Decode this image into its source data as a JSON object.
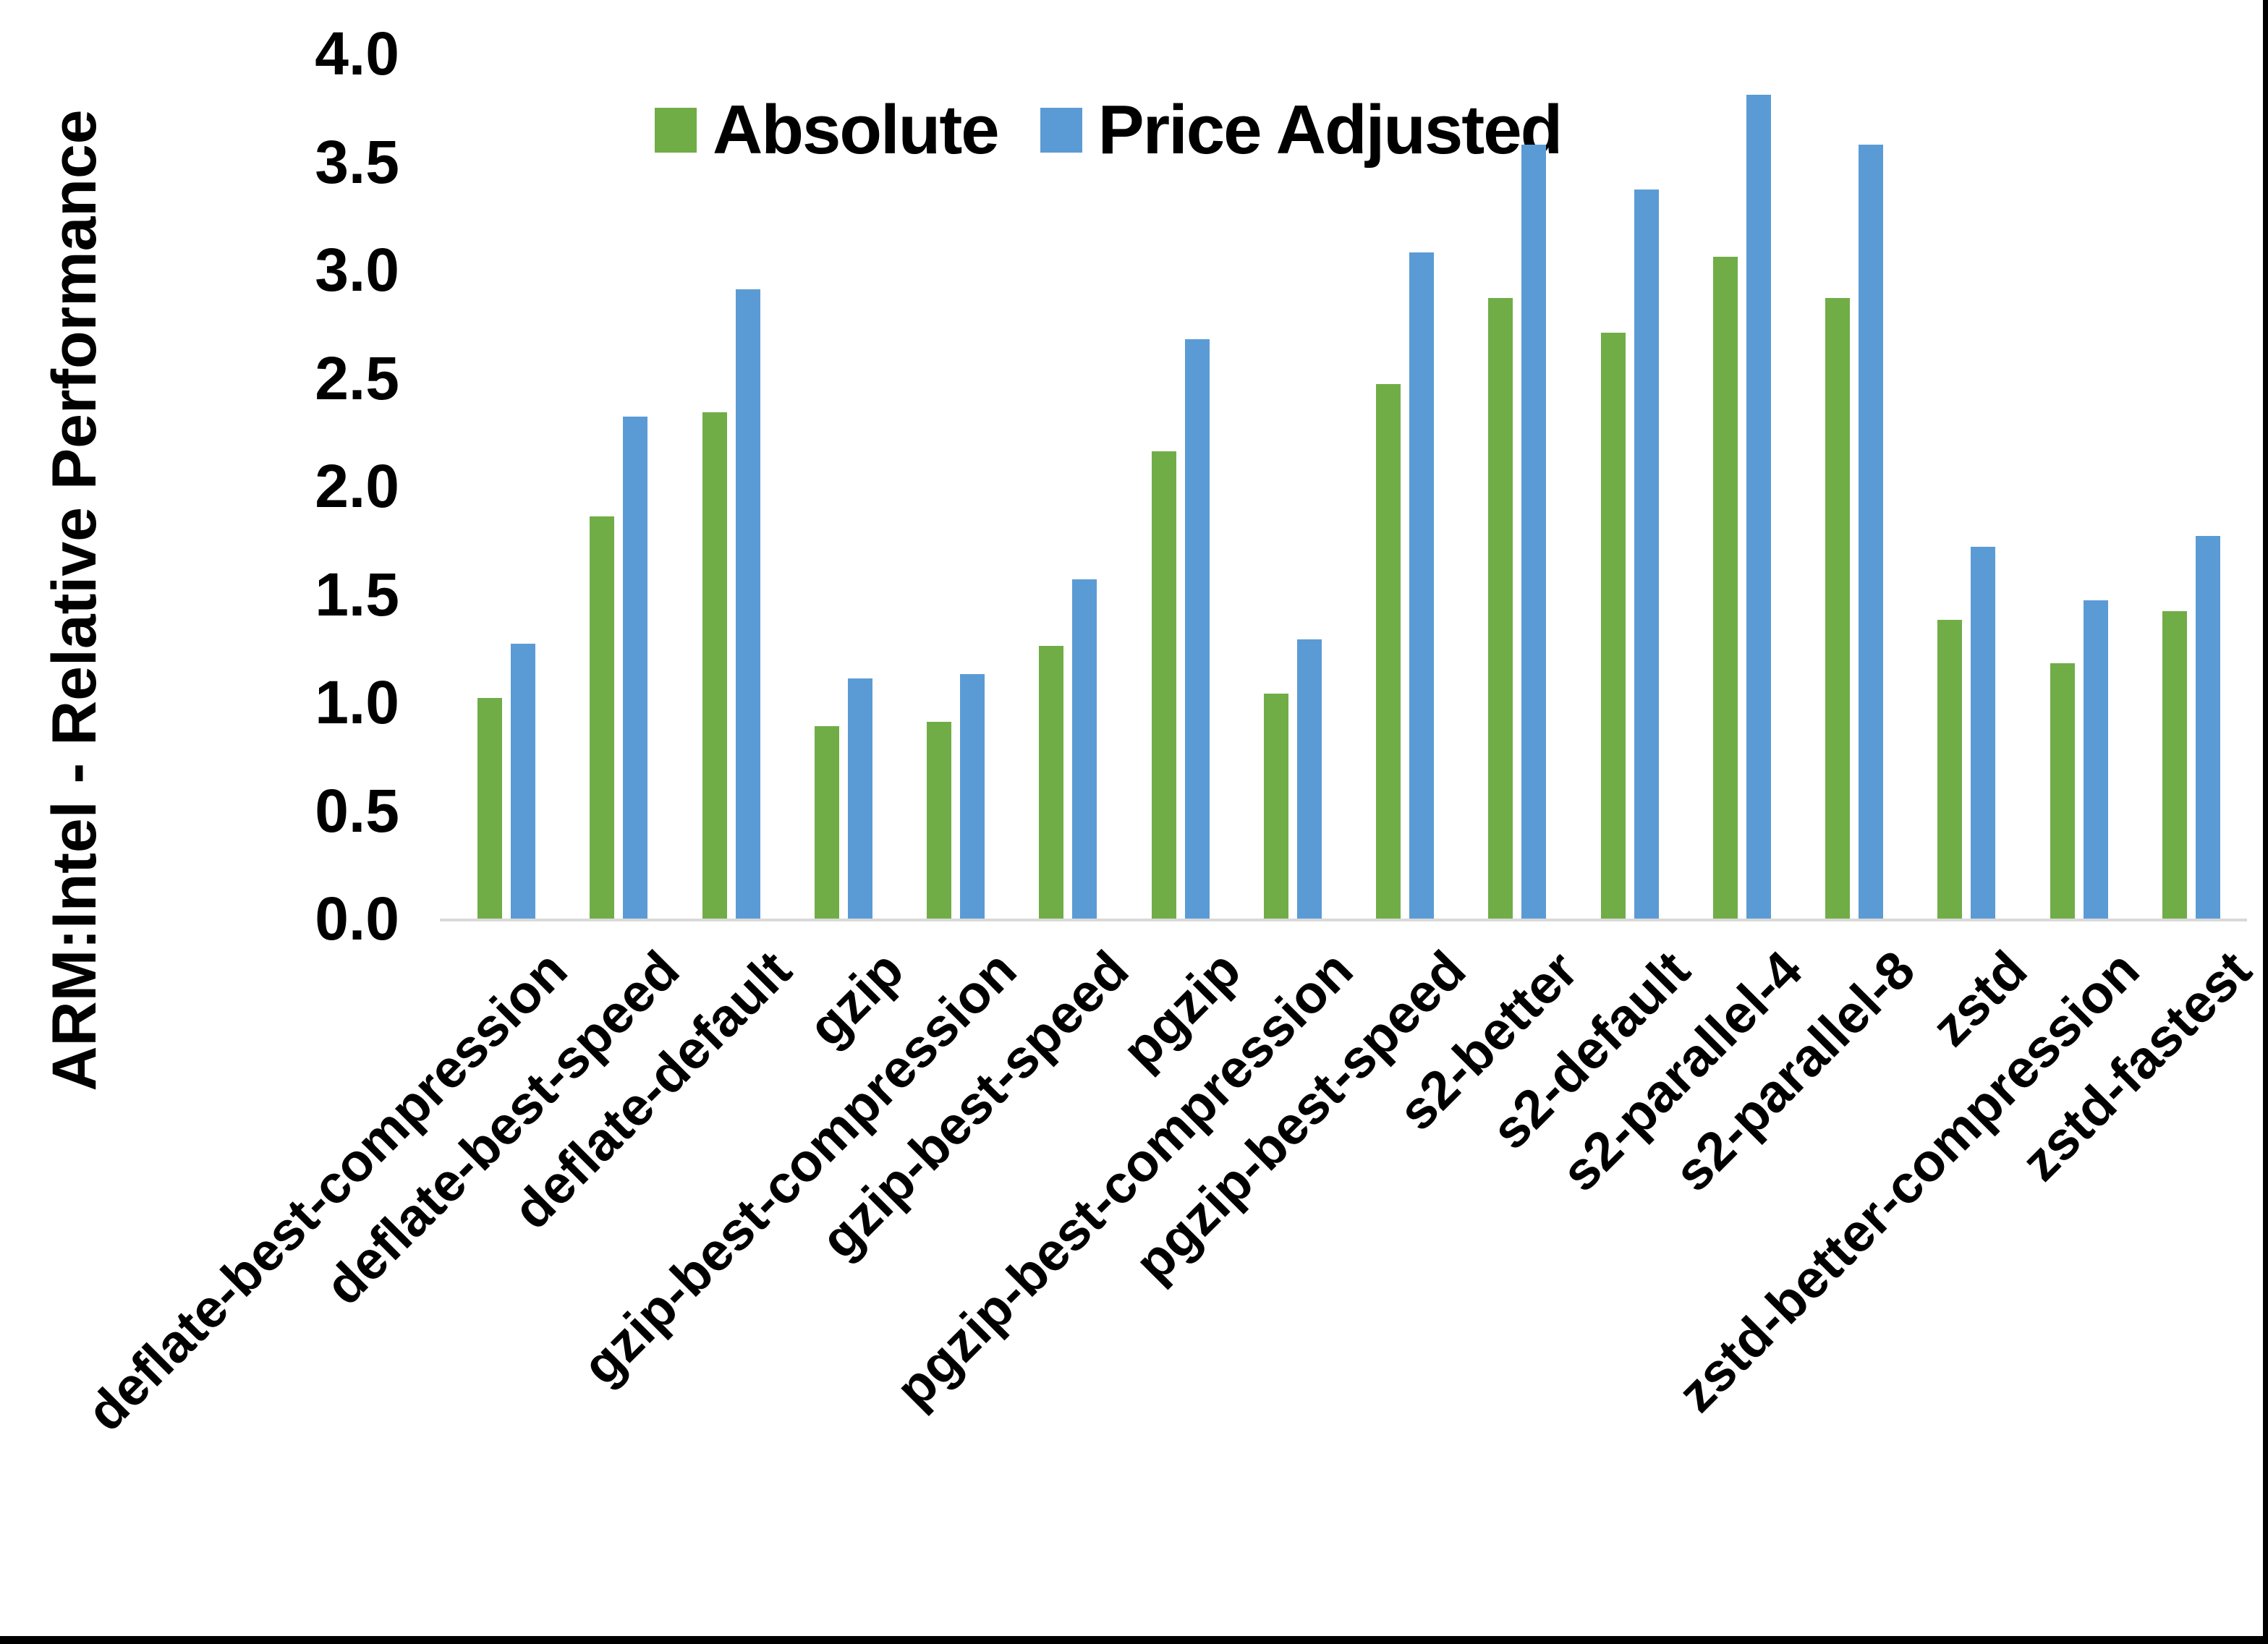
{
  "page": {
    "background": "#ffffff",
    "frame_border_color": "#000000"
  },
  "y_axis": {
    "title": "ARM:Intel - Relative Performance",
    "ticks": [
      "0.0",
      "0.5",
      "1.0",
      "1.5",
      "2.0",
      "2.5",
      "3.0",
      "3.5",
      "4.0"
    ],
    "axis_line_color": "#d9d9d9"
  },
  "legend": {
    "items": [
      {
        "label": "Absolute",
        "color": "#70AD47"
      },
      {
        "label": "Price Adjusted",
        "color": "#5B9BD5"
      }
    ]
  },
  "chart_data": {
    "type": "bar",
    "title": "",
    "xlabel": "",
    "ylabel": "ARM:Intel - Relative Performance",
    "ylim": [
      0,
      4
    ],
    "ytick_step": 0.5,
    "grid": false,
    "legend_position": "top-center",
    "categories": [
      "deflate-best-compression",
      "deflate-best-speed",
      "deflate-default",
      "gzip",
      "gzip-best-compression",
      "gzip-best-speed",
      "pgzip",
      "pgzip-best-compression",
      "pgzip-best-speed",
      "s2-better",
      "s2-default",
      "s2-parallel-4",
      "s2-parallel-8",
      "zstd",
      "zstd-better-compression",
      "zstd-fastest"
    ],
    "series": [
      {
        "name": "Absolute",
        "color": "#70AD47",
        "values": [
          1.02,
          1.86,
          2.34,
          0.89,
          0.91,
          1.26,
          2.16,
          1.04,
          2.47,
          2.87,
          2.71,
          3.06,
          2.87,
          1.38,
          1.18,
          1.42
        ]
      },
      {
        "name": "Price Adjusted",
        "color": "#5B9BD5",
        "values": [
          1.27,
          2.32,
          2.91,
          1.11,
          1.13,
          1.57,
          2.68,
          1.29,
          3.08,
          3.58,
          3.37,
          3.81,
          3.58,
          1.72,
          1.47,
          1.77
        ]
      }
    ]
  }
}
